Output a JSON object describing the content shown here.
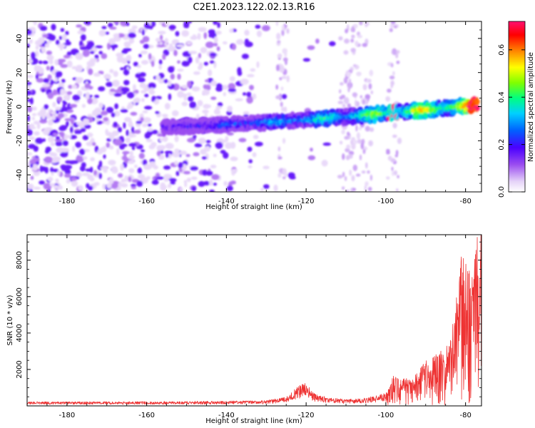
{
  "figure": {
    "title": "C2E1.2023.122.02.13.R16"
  },
  "chart_data": [
    {
      "type": "heatmap",
      "xlabel": "Height of straight line (km)",
      "ylabel": "Frequency (Hz)",
      "xlim": [
        -190,
        -76
      ],
      "ylim": [
        -50,
        50
      ],
      "xticks": [
        -180,
        -160,
        -140,
        -120,
        -100,
        -80
      ],
      "yticks": [
        -40,
        -20,
        0,
        20,
        40
      ],
      "grid": false,
      "colorbar": {
        "label": "Normalized spectral amplitude",
        "range": [
          0,
          0.72
        ],
        "ticks": [
          0.0,
          0.2,
          0.4,
          0.6
        ],
        "colormap": "rainbow (white, violet, blue, cyan, green, yellow, red, magenta)"
      },
      "features": {
        "signal_trace": {
          "x_start": -156,
          "x_end": -77,
          "freq_start": -12,
          "freq_end": 1,
          "peak_amplitude": 0.72
        },
        "noise_region": {
          "x_start": -190,
          "x_end": -126,
          "freq_range": [
            -50,
            50
          ],
          "amplitude": 0.1
        }
      }
    },
    {
      "type": "line",
      "xlabel": "Height of straight line (km)",
      "ylabel": "SNR (10 * v/v)",
      "xlim": [
        -190,
        -76
      ],
      "ylim": [
        0,
        9400
      ],
      "xticks": [
        -180,
        -160,
        -140,
        -120,
        -100,
        -80
      ],
      "yticks": [
        2000,
        4000,
        6000,
        8000
      ],
      "grid": false,
      "series": [
        {
          "color": "#ee3333",
          "envelope": {
            "x": [
              -190,
              -160,
              -140,
              -130,
              -125,
              -122,
              -120,
              -118,
              -115,
              -110,
              -105,
              -100,
              -98,
              -96,
              -93,
              -90,
              -87,
              -85,
              -83,
              -81,
              -79,
              -77
            ],
            "y": [
              230,
              240,
              270,
              300,
              500,
              1100,
              1300,
              700,
              500,
              350,
              450,
              700,
              1800,
              1500,
              1600,
              2500,
              2900,
              3200,
              4700,
              8300,
              7900,
              9400
            ]
          }
        }
      ]
    }
  ]
}
